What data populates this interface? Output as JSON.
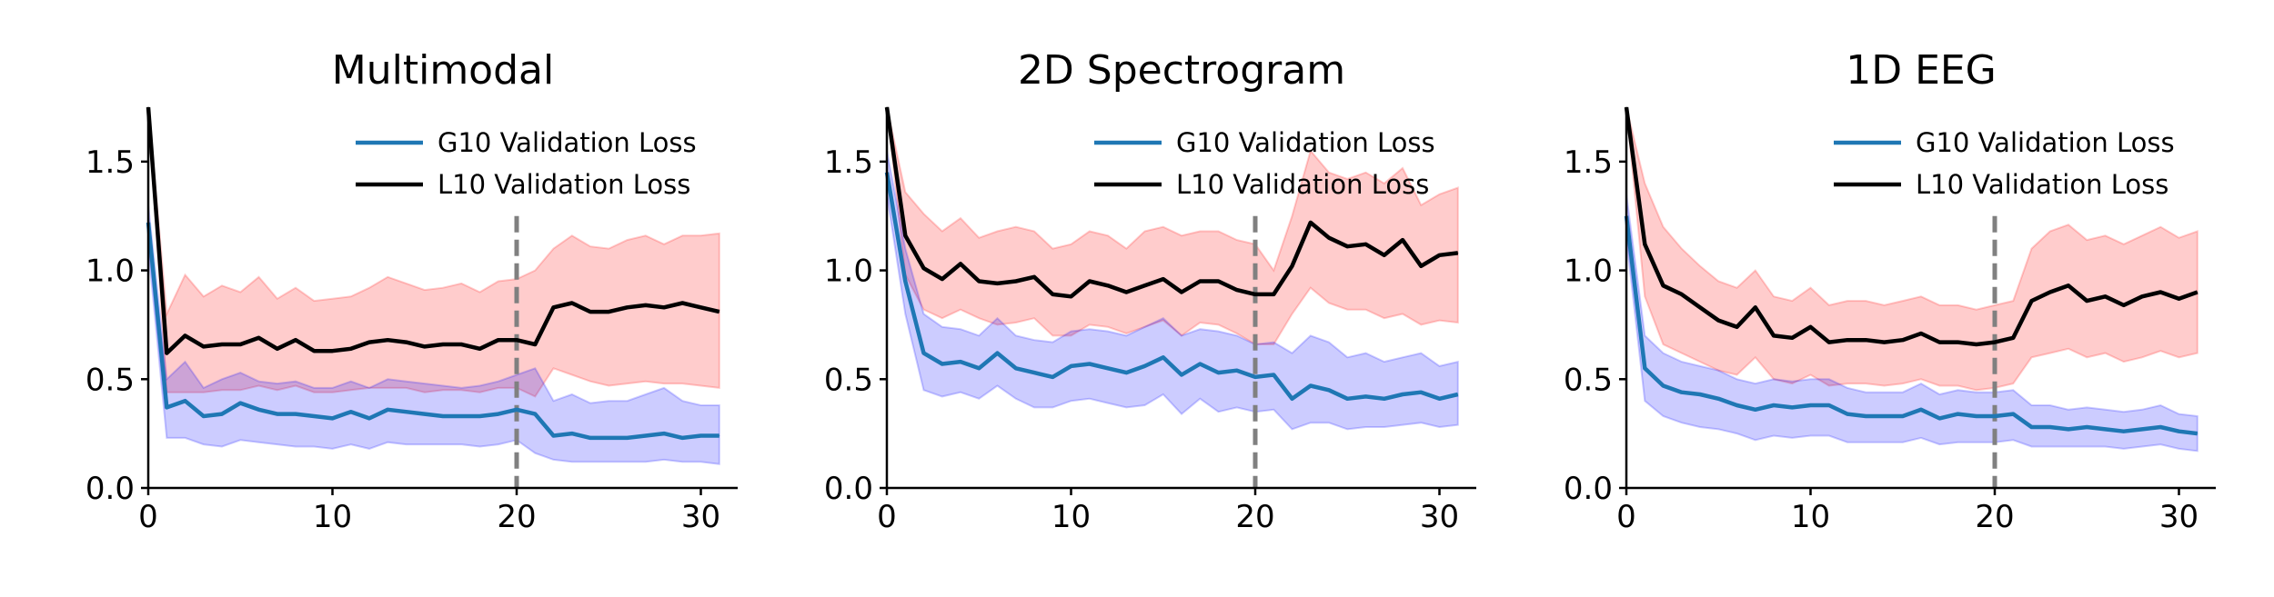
{
  "chart_data": [
    {
      "type": "line",
      "title": "Multimodal",
      "xlabel": "",
      "ylabel": "",
      "xlim": [
        0,
        32
      ],
      "ylim": [
        0,
        1.75
      ],
      "xticks": [
        "0",
        "10",
        "20",
        "30"
      ],
      "yticks": [
        "0.0",
        "0.5",
        "1.0",
        "1.5"
      ],
      "vline_x": 20,
      "legend_position": "top-right",
      "series": [
        {
          "name": "G10 Validation Loss",
          "color": "#1f77b4",
          "band_color": "#0000ff",
          "x": [
            0,
            1,
            2,
            3,
            4,
            5,
            6,
            7,
            8,
            9,
            10,
            11,
            12,
            13,
            14,
            15,
            16,
            17,
            18,
            19,
            20,
            21,
            22,
            23,
            24,
            25,
            26,
            27,
            28,
            29,
            30,
            31
          ],
          "values": [
            1.22,
            0.37,
            0.4,
            0.33,
            0.34,
            0.39,
            0.36,
            0.34,
            0.34,
            0.33,
            0.32,
            0.35,
            0.32,
            0.36,
            0.35,
            0.34,
            0.33,
            0.33,
            0.33,
            0.34,
            0.36,
            0.34,
            0.24,
            0.25,
            0.23,
            0.23,
            0.23,
            0.24,
            0.25,
            0.23,
            0.24,
            0.24
          ],
          "upper": [
            1.3,
            0.5,
            0.58,
            0.46,
            0.5,
            0.53,
            0.49,
            0.48,
            0.49,
            0.46,
            0.46,
            0.49,
            0.46,
            0.5,
            0.49,
            0.48,
            0.47,
            0.46,
            0.47,
            0.49,
            0.52,
            0.55,
            0.4,
            0.43,
            0.39,
            0.4,
            0.4,
            0.43,
            0.46,
            0.4,
            0.38,
            0.38
          ],
          "lower": [
            1.1,
            0.23,
            0.23,
            0.2,
            0.19,
            0.22,
            0.21,
            0.2,
            0.19,
            0.19,
            0.18,
            0.2,
            0.18,
            0.21,
            0.2,
            0.2,
            0.2,
            0.2,
            0.19,
            0.2,
            0.22,
            0.16,
            0.13,
            0.12,
            0.12,
            0.12,
            0.12,
            0.12,
            0.13,
            0.12,
            0.12,
            0.11
          ]
        },
        {
          "name": "L10 Validation Loss",
          "color": "#000000",
          "band_color": "#ff0000",
          "x": [
            0,
            1,
            2,
            3,
            4,
            5,
            6,
            7,
            8,
            9,
            10,
            11,
            12,
            13,
            14,
            15,
            16,
            17,
            18,
            19,
            20,
            21,
            22,
            23,
            24,
            25,
            26,
            27,
            28,
            29,
            30,
            31
          ],
          "values": [
            1.75,
            0.62,
            0.7,
            0.65,
            0.66,
            0.66,
            0.69,
            0.64,
            0.68,
            0.63,
            0.63,
            0.64,
            0.67,
            0.68,
            0.67,
            0.65,
            0.66,
            0.66,
            0.64,
            0.68,
            0.68,
            0.66,
            0.83,
            0.85,
            0.81,
            0.81,
            0.83,
            0.84,
            0.83,
            0.85,
            0.83,
            0.81
          ],
          "upper": [
            1.75,
            0.8,
            0.98,
            0.88,
            0.93,
            0.9,
            0.97,
            0.87,
            0.92,
            0.86,
            0.87,
            0.88,
            0.92,
            0.97,
            0.94,
            0.91,
            0.92,
            0.94,
            0.9,
            0.95,
            0.96,
            1.0,
            1.1,
            1.16,
            1.11,
            1.1,
            1.14,
            1.16,
            1.12,
            1.16,
            1.16,
            1.17
          ],
          "lower": [
            1.75,
            0.44,
            0.44,
            0.44,
            0.45,
            0.45,
            0.47,
            0.45,
            0.47,
            0.44,
            0.44,
            0.45,
            0.46,
            0.46,
            0.46,
            0.44,
            0.45,
            0.45,
            0.44,
            0.46,
            0.46,
            0.42,
            0.55,
            0.52,
            0.49,
            0.47,
            0.48,
            0.49,
            0.48,
            0.48,
            0.47,
            0.46
          ]
        }
      ]
    },
    {
      "type": "line",
      "title": "2D Spectrogram",
      "xlabel": "",
      "ylabel": "",
      "xlim": [
        0,
        32
      ],
      "ylim": [
        0,
        1.75
      ],
      "xticks": [
        "0",
        "10",
        "20",
        "30"
      ],
      "yticks": [
        "0.0",
        "0.5",
        "1.0",
        "1.5"
      ],
      "vline_x": 20,
      "legend_position": "top-right",
      "series": [
        {
          "name": "G10 Validation Loss",
          "color": "#1f77b4",
          "band_color": "#0000ff",
          "x": [
            0,
            1,
            2,
            3,
            4,
            5,
            6,
            7,
            8,
            9,
            10,
            11,
            12,
            13,
            14,
            15,
            16,
            17,
            18,
            19,
            20,
            21,
            22,
            23,
            24,
            25,
            26,
            27,
            28,
            29,
            30,
            31
          ],
          "values": [
            1.45,
            0.95,
            0.62,
            0.57,
            0.58,
            0.55,
            0.62,
            0.55,
            0.53,
            0.51,
            0.56,
            0.57,
            0.55,
            0.53,
            0.56,
            0.6,
            0.52,
            0.57,
            0.53,
            0.54,
            0.51,
            0.52,
            0.41,
            0.47,
            0.45,
            0.41,
            0.42,
            0.41,
            0.43,
            0.44,
            0.41,
            0.43
          ],
          "upper": [
            1.55,
            1.1,
            0.8,
            0.74,
            0.73,
            0.7,
            0.78,
            0.7,
            0.68,
            0.67,
            0.72,
            0.73,
            0.72,
            0.7,
            0.74,
            0.78,
            0.7,
            0.73,
            0.72,
            0.7,
            0.66,
            0.67,
            0.62,
            0.7,
            0.67,
            0.6,
            0.62,
            0.58,
            0.6,
            0.62,
            0.56,
            0.58
          ],
          "lower": [
            1.35,
            0.8,
            0.45,
            0.42,
            0.44,
            0.41,
            0.47,
            0.41,
            0.37,
            0.37,
            0.4,
            0.41,
            0.39,
            0.37,
            0.38,
            0.43,
            0.34,
            0.41,
            0.35,
            0.37,
            0.35,
            0.36,
            0.27,
            0.3,
            0.3,
            0.27,
            0.28,
            0.28,
            0.29,
            0.3,
            0.28,
            0.29
          ]
        },
        {
          "name": "L10 Validation Loss",
          "color": "#000000",
          "band_color": "#ff0000",
          "x": [
            0,
            1,
            2,
            3,
            4,
            5,
            6,
            7,
            8,
            9,
            10,
            11,
            12,
            13,
            14,
            15,
            16,
            17,
            18,
            19,
            20,
            21,
            22,
            23,
            24,
            25,
            26,
            27,
            28,
            29,
            30,
            31
          ],
          "values": [
            1.75,
            1.16,
            1.01,
            0.96,
            1.03,
            0.95,
            0.94,
            0.95,
            0.97,
            0.89,
            0.88,
            0.95,
            0.93,
            0.9,
            0.93,
            0.96,
            0.9,
            0.95,
            0.95,
            0.91,
            0.89,
            0.89,
            1.02,
            1.22,
            1.15,
            1.11,
            1.12,
            1.07,
            1.14,
            1.02,
            1.07,
            1.08
          ],
          "upper": [
            1.75,
            1.36,
            1.26,
            1.18,
            1.24,
            1.15,
            1.18,
            1.2,
            1.18,
            1.1,
            1.12,
            1.18,
            1.16,
            1.1,
            1.18,
            1.2,
            1.16,
            1.18,
            1.18,
            1.14,
            1.12,
            1.0,
            1.25,
            1.55,
            1.45,
            1.42,
            1.45,
            1.4,
            1.47,
            1.3,
            1.35,
            1.38
          ],
          "lower": [
            1.75,
            0.98,
            0.82,
            0.78,
            0.82,
            0.78,
            0.75,
            0.76,
            0.78,
            0.7,
            0.7,
            0.75,
            0.74,
            0.71,
            0.74,
            0.77,
            0.7,
            0.76,
            0.75,
            0.71,
            0.66,
            0.66,
            0.8,
            0.92,
            0.85,
            0.82,
            0.82,
            0.78,
            0.8,
            0.75,
            0.77,
            0.76
          ]
        }
      ]
    },
    {
      "type": "line",
      "title": "1D EEG",
      "xlabel": "",
      "ylabel": "",
      "xlim": [
        0,
        32
      ],
      "ylim": [
        0,
        1.75
      ],
      "xticks": [
        "0",
        "10",
        "20",
        "30"
      ],
      "yticks": [
        "0.0",
        "0.5",
        "1.0",
        "1.5"
      ],
      "vline_x": 20,
      "legend_position": "top-right",
      "series": [
        {
          "name": "G10 Validation Loss",
          "color": "#1f77b4",
          "band_color": "#0000ff",
          "x": [
            0,
            1,
            2,
            3,
            4,
            5,
            6,
            7,
            8,
            9,
            10,
            11,
            12,
            13,
            14,
            15,
            16,
            17,
            18,
            19,
            20,
            21,
            22,
            23,
            24,
            25,
            26,
            27,
            28,
            29,
            30,
            31
          ],
          "values": [
            1.25,
            0.55,
            0.47,
            0.44,
            0.43,
            0.41,
            0.38,
            0.36,
            0.38,
            0.37,
            0.38,
            0.38,
            0.34,
            0.33,
            0.33,
            0.33,
            0.36,
            0.32,
            0.34,
            0.33,
            0.33,
            0.34,
            0.28,
            0.28,
            0.27,
            0.28,
            0.27,
            0.26,
            0.27,
            0.28,
            0.26,
            0.25
          ],
          "upper": [
            1.35,
            0.7,
            0.62,
            0.58,
            0.56,
            0.54,
            0.5,
            0.48,
            0.5,
            0.49,
            0.5,
            0.5,
            0.46,
            0.44,
            0.44,
            0.44,
            0.48,
            0.43,
            0.45,
            0.44,
            0.44,
            0.45,
            0.38,
            0.38,
            0.36,
            0.37,
            0.36,
            0.35,
            0.36,
            0.38,
            0.34,
            0.33
          ],
          "lower": [
            1.15,
            0.4,
            0.33,
            0.3,
            0.28,
            0.27,
            0.25,
            0.22,
            0.24,
            0.23,
            0.24,
            0.24,
            0.21,
            0.21,
            0.21,
            0.21,
            0.23,
            0.2,
            0.21,
            0.21,
            0.21,
            0.22,
            0.19,
            0.19,
            0.19,
            0.19,
            0.19,
            0.18,
            0.19,
            0.2,
            0.18,
            0.17
          ]
        },
        {
          "name": "L10 Validation Loss",
          "color": "#000000",
          "band_color": "#ff0000",
          "x": [
            0,
            1,
            2,
            3,
            4,
            5,
            6,
            7,
            8,
            9,
            10,
            11,
            12,
            13,
            14,
            15,
            16,
            17,
            18,
            19,
            20,
            21,
            22,
            23,
            24,
            25,
            26,
            27,
            28,
            29,
            30,
            31
          ],
          "values": [
            1.75,
            1.12,
            0.93,
            0.89,
            0.83,
            0.77,
            0.74,
            0.83,
            0.7,
            0.69,
            0.74,
            0.67,
            0.68,
            0.68,
            0.67,
            0.68,
            0.71,
            0.67,
            0.67,
            0.66,
            0.67,
            0.69,
            0.86,
            0.9,
            0.93,
            0.86,
            0.88,
            0.84,
            0.88,
            0.9,
            0.87,
            0.9
          ],
          "upper": [
            1.75,
            1.4,
            1.2,
            1.1,
            1.02,
            0.95,
            0.92,
            1.0,
            0.88,
            0.86,
            0.92,
            0.84,
            0.86,
            0.86,
            0.84,
            0.86,
            0.88,
            0.84,
            0.84,
            0.82,
            0.84,
            0.86,
            1.1,
            1.18,
            1.21,
            1.14,
            1.16,
            1.12,
            1.16,
            1.2,
            1.15,
            1.18
          ],
          "lower": [
            1.75,
            0.88,
            0.66,
            0.62,
            0.58,
            0.54,
            0.52,
            0.6,
            0.5,
            0.48,
            0.52,
            0.47,
            0.48,
            0.48,
            0.47,
            0.48,
            0.5,
            0.47,
            0.47,
            0.45,
            0.46,
            0.48,
            0.6,
            0.62,
            0.64,
            0.6,
            0.62,
            0.58,
            0.6,
            0.63,
            0.6,
            0.62
          ]
        }
      ]
    }
  ]
}
